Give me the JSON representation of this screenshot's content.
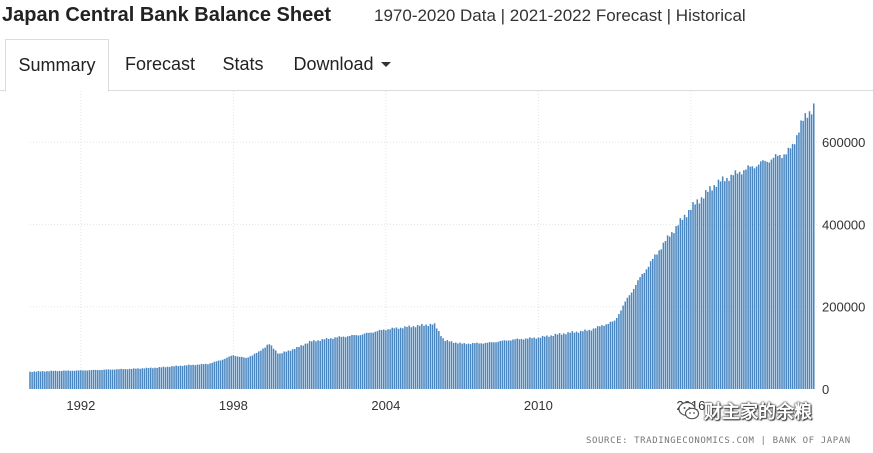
{
  "header": {
    "title": "Japan Central Bank Balance Sheet",
    "subtitle": "1970-2020 Data | 2021-2022 Forecast | Historical"
  },
  "tabs": [
    {
      "label": "Summary",
      "active": true
    },
    {
      "label": "Forecast",
      "active": false
    },
    {
      "label": "Stats",
      "active": false
    },
    {
      "label": "Download",
      "active": false,
      "dropdown": true
    }
  ],
  "source": "SOURCE: TRADINGECONOMICS.COM | BANK OF JAPAN",
  "watermark": {
    "text": "财主家的余粮",
    "icon": "wechat-icon"
  },
  "colors": {
    "bar": "#4a86c0",
    "grid": "#e3e3e3",
    "axis_text": "#333333"
  },
  "chart_data": {
    "type": "bar",
    "x_range": [
      1990.0,
      2021.0
    ],
    "x_ticks": [
      "1992",
      "1998",
      "2004",
      "2010",
      "2016"
    ],
    "x_tick_values": [
      1992,
      1998,
      2004,
      2010,
      2016
    ],
    "ylim": [
      0,
      700000
    ],
    "y_ticks": [
      "0",
      "200000",
      "400000",
      "600000"
    ],
    "y_tick_values": [
      0,
      200000,
      400000,
      600000
    ],
    "grid": true,
    "ylabel": "",
    "xlabel": "",
    "series": [
      {
        "points": [
          [
            1990.0,
            42000
          ],
          [
            1991.0,
            44000
          ],
          [
            1992.0,
            45000
          ],
          [
            1993.0,
            47000
          ],
          [
            1994.0,
            49000
          ],
          [
            1995.0,
            52000
          ],
          [
            1996.0,
            57000
          ],
          [
            1997.0,
            61000
          ],
          [
            1997.5,
            70000
          ],
          [
            1998.0,
            82000
          ],
          [
            1998.5,
            75000
          ],
          [
            1999.0,
            90000
          ],
          [
            1999.4,
            110000
          ],
          [
            1999.8,
            85000
          ],
          [
            2000.5,
            100000
          ],
          [
            2001.0,
            115000
          ],
          [
            2002.0,
            125000
          ],
          [
            2003.0,
            132000
          ],
          [
            2004.0,
            145000
          ],
          [
            2005.0,
            152000
          ],
          [
            2005.9,
            158000
          ],
          [
            2006.3,
            118000
          ],
          [
            2007.0,
            110000
          ],
          [
            2008.0,
            112000
          ],
          [
            2009.0,
            120000
          ],
          [
            2010.0,
            125000
          ],
          [
            2011.0,
            135000
          ],
          [
            2012.0,
            143000
          ],
          [
            2013.0,
            165000
          ],
          [
            2013.5,
            220000
          ],
          [
            2014.0,
            270000
          ],
          [
            2014.5,
            315000
          ],
          [
            2015.0,
            360000
          ],
          [
            2015.5,
            400000
          ],
          [
            2016.0,
            440000
          ],
          [
            2016.5,
            470000
          ],
          [
            2017.0,
            500000
          ],
          [
            2018.0,
            530000
          ],
          [
            2019.0,
            555000
          ],
          [
            2019.8,
            575000
          ],
          [
            2020.0,
            590000
          ],
          [
            2020.3,
            640000
          ],
          [
            2020.6,
            670000
          ],
          [
            2020.9,
            690000
          ]
        ]
      }
    ]
  }
}
